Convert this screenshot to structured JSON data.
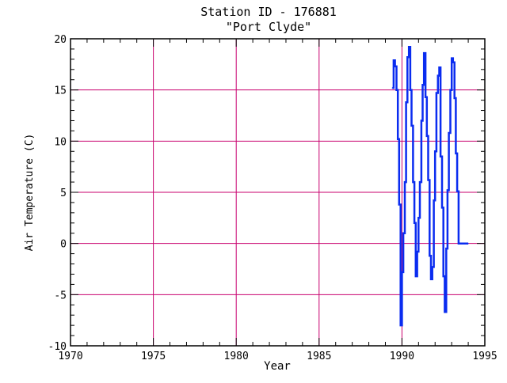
{
  "chart_data": {
    "type": "line",
    "title_line1": "Station ID - 176881",
    "title_line2": "\"Port Clyde\"",
    "xlabel": "Year",
    "ylabel": "Air Temperature (C)",
    "xlim": [
      1970,
      1995
    ],
    "ylim": [
      -10,
      20
    ],
    "xticks": [
      1970,
      1975,
      1980,
      1985,
      1990,
      1995
    ],
    "yticks": [
      -10,
      -5,
      0,
      5,
      10,
      15,
      20
    ],
    "grid": true,
    "colors": {
      "series": "#0a2cf0",
      "grid": "#c8006e",
      "axes": "#000000"
    },
    "series": [
      {
        "step": true,
        "x": [
          1989.42,
          1989.5,
          1989.58,
          1989.67,
          1989.75,
          1989.83,
          1989.92,
          1990.0,
          1990.08,
          1990.17,
          1990.25,
          1990.33,
          1990.42,
          1990.5,
          1990.58,
          1990.67,
          1990.75,
          1990.83,
          1990.92,
          1991.0,
          1991.08,
          1991.17,
          1991.25,
          1991.33,
          1991.42,
          1991.5,
          1991.58,
          1991.67,
          1991.75,
          1991.83,
          1991.92,
          1992.0,
          1992.08,
          1992.17,
          1992.25,
          1992.33,
          1992.42,
          1992.5,
          1992.58,
          1992.67,
          1992.75,
          1992.83,
          1992.92,
          1993.0,
          1993.08,
          1993.17,
          1993.25,
          1993.33,
          1993.42,
          1993.5,
          1993.58,
          1993.67,
          1993.75,
          1993.83,
          1993.92,
          1994.0
        ],
        "y": [
          15.2,
          17.9,
          17.3,
          15.0,
          10.2,
          3.8,
          -8.0,
          -2.8,
          1.0,
          6.0,
          13.8,
          18.2,
          19.2,
          15.0,
          11.5,
          6.0,
          2.0,
          -3.2,
          -0.8,
          2.5,
          6.0,
          12.0,
          15.5,
          18.6,
          14.3,
          10.5,
          6.2,
          -1.2,
          -3.5,
          -2.3,
          4.2,
          9.0,
          14.7,
          16.4,
          17.2,
          8.5,
          3.5,
          -3.2,
          -6.7,
          -0.5,
          5.2,
          10.8,
          15.0,
          18.1,
          17.7,
          14.2,
          8.8,
          5.1,
          0.0,
          0.0,
          0.0,
          0.0,
          0.0,
          0.0,
          0.0,
          0.0
        ]
      }
    ]
  }
}
